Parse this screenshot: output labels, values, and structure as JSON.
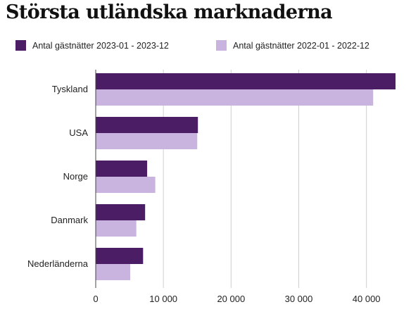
{
  "title": "Största utländska marknaderna",
  "colors": {
    "series_2023": "#4a1d64",
    "series_2022": "#c9b4df",
    "grid": "#d0d0d0",
    "axis": "#444444"
  },
  "chart_data": {
    "type": "bar",
    "orientation": "horizontal",
    "title": "Största utländska marknaderna",
    "categories": [
      "Tyskland",
      "USA",
      "Norge",
      "Danmark",
      "Nederländerna"
    ],
    "series": [
      {
        "name": "Antal gästnätter 2023-01 - 2023-12",
        "values": [
          44300,
          15100,
          7600,
          7300,
          7000
        ]
      },
      {
        "name": "Antal gästnätter 2022-01 - 2022-12",
        "values": [
          41000,
          15000,
          8800,
          6000,
          5100
        ]
      }
    ],
    "xlim": [
      0,
      44300
    ],
    "x_ticks": [
      0,
      10000,
      20000,
      30000,
      40000
    ],
    "x_tick_labels": [
      "0",
      "10 000",
      "20 000",
      "30 000",
      "40 000"
    ],
    "xlabel": "",
    "ylabel": "",
    "grid": true,
    "legend_position": "top"
  }
}
